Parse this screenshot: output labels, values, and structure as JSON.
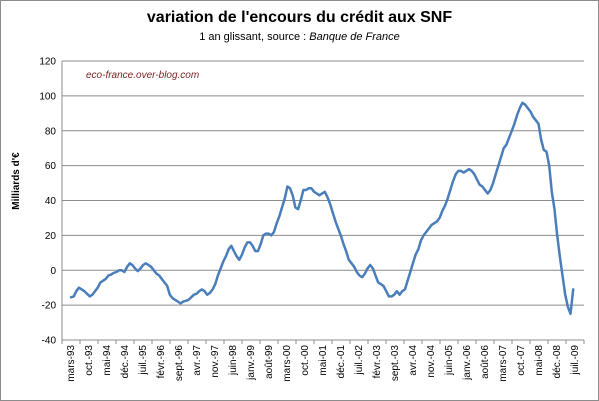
{
  "chart_data": {
    "type": "line",
    "title": "variation de l'encours du crédit aux SNF",
    "subtitle_prefix": "1 an glissant, source : ",
    "subtitle_source": "Banque de France",
    "annotation": "eco-france.over-blog.com",
    "xlabel": "",
    "ylabel": "Milliards d'€",
    "ylim": [
      -40,
      120
    ],
    "yticks": [
      120,
      100,
      80,
      60,
      40,
      20,
      0,
      -20,
      -40
    ],
    "grid": true,
    "legend": "none",
    "line_color": "#4a7ebb",
    "xtick_labels": [
      "mars-93",
      "oct.-93",
      "mai-94",
      "déc.-94",
      "juil.-95",
      "févr.-96",
      "sept.-96",
      "avr.-97",
      "nov.-97",
      "juin-98",
      "janv.-99",
      "août-99",
      "mars-00",
      "oct.-00",
      "mai-01",
      "déc.-01",
      "juil.-02",
      "févr.-03",
      "sept.-03",
      "avr.-04",
      "nov.-04",
      "juin-05",
      "janv.-06",
      "août-06",
      "mars-07",
      "oct.-07",
      "mai-08",
      "déc.-08",
      "juil.-09"
    ],
    "series": [
      {
        "values": [
          -15.5,
          -15,
          -12,
          -10,
          -11,
          -12,
          -13.5,
          -15,
          -14,
          -12,
          -10,
          -7,
          -6,
          -5,
          -3,
          -2.5,
          -1.5,
          -1,
          0,
          0,
          -1,
          2,
          4,
          3,
          1,
          -0.5,
          1,
          3,
          4,
          3,
          2,
          0,
          -2,
          -3,
          -5,
          -7,
          -9,
          -14,
          -16,
          -17,
          -18,
          -19,
          -18,
          -17.5,
          -17,
          -15.5,
          -14,
          -13.5,
          -12,
          -11,
          -12,
          -14,
          -13,
          -11,
          -8,
          -3,
          1,
          5,
          8,
          12,
          14,
          11,
          8,
          6,
          9,
          13,
          16,
          16,
          14,
          11,
          11,
          15,
          20,
          21,
          21,
          20,
          22,
          27,
          31,
          36,
          41,
          48,
          47,
          43,
          36,
          35,
          40,
          46,
          46,
          47,
          47,
          45,
          44,
          43,
          44,
          45,
          42,
          38,
          33,
          28,
          24,
          20,
          15,
          11,
          6,
          4,
          2,
          -1,
          -3,
          -4,
          -2,
          1,
          3,
          1,
          -3,
          -7,
          -8,
          -9,
          -12,
          -15,
          -15,
          -14,
          -12,
          -14,
          -12,
          -11,
          -6,
          -1,
          4,
          9,
          12,
          17,
          20,
          22,
          24,
          26,
          27,
          28,
          30,
          34,
          37,
          41,
          46,
          51,
          55,
          57,
          57,
          56,
          57,
          58,
          57,
          55,
          52,
          49,
          48,
          46,
          44,
          46,
          50,
          55,
          60,
          65,
          70,
          72,
          76,
          80,
          84,
          89,
          93,
          96,
          95,
          93,
          91,
          88,
          86,
          84,
          75,
          69,
          68,
          60,
          45,
          35,
          20,
          8,
          -3,
          -14,
          -21,
          -25,
          -11
        ],
        "x_start_index": 0,
        "x_end_index": 27.9
      }
    ]
  }
}
